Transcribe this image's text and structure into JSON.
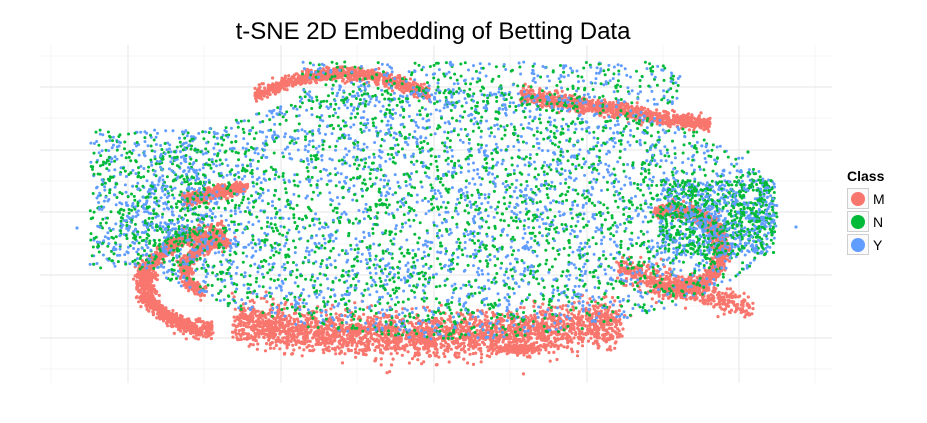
{
  "chart_data": {
    "type": "scatter",
    "title": "t-SNE 2D Embedding of Betting Data",
    "xlabel": "",
    "ylabel": "",
    "grid": true,
    "axis_tick_labels_shown": false,
    "legend": {
      "title": "Class",
      "placement": "right"
    },
    "series": [
      {
        "name": "M",
        "color": "#F8766D"
      },
      {
        "name": "N",
        "color": "#00BA38"
      },
      {
        "name": "Y",
        "color": "#619CFF"
      }
    ]
  }
}
